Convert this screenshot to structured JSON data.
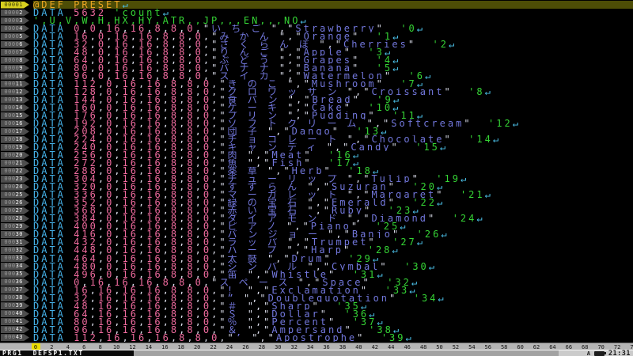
{
  "editor": {
    "label_line": "@DEF_PRESET",
    "count_line": {
      "keyword": "DATA",
      "value": "5632",
      "comment": "'count"
    },
    "header_comment": "',U,V,W,H,HX,HY,ATR,,JP,,,EN,,,NO",
    "return_glyph": "↵",
    "data_keyword": "DATA",
    "rows": [
      {
        "vals": [
          0,
          0,
          16,
          16,
          8,
          8,
          0
        ],
        "jp": "いちご",
        "en": "Strawberry",
        "no": 0
      },
      {
        "vals": [
          16,
          0,
          16,
          16,
          8,
          8,
          0
        ],
        "jp": "みかん",
        "en": "Orange",
        "no": 1
      },
      {
        "vals": [
          32,
          0,
          16,
          16,
          8,
          8,
          0
        ],
        "jp": "さくらんぼ",
        "en": "Cherries",
        "no": 2
      },
      {
        "vals": [
          48,
          0,
          16,
          16,
          8,
          8,
          0
        ],
        "jp": "りんご",
        "en": "Apple",
        "no": 3
      },
      {
        "vals": [
          64,
          0,
          16,
          16,
          8,
          8,
          0
        ],
        "jp": "ぶどう",
        "en": "Grapes",
        "no": 4
      },
      {
        "vals": [
          80,
          0,
          16,
          16,
          8,
          8,
          0
        ],
        "jp": "バナナ",
        "en": "Banana",
        "no": 5
      },
      {
        "vals": [
          96,
          0,
          16,
          16,
          8,
          8,
          0
        ],
        "jp": "スイカ",
        "en": "Watermelon",
        "no": 6
      },
      {
        "vals": [
          112,
          0,
          16,
          16,
          8,
          8,
          0
        ],
        "jp": "きのこ",
        "en": "Mushroom",
        "no": 7
      },
      {
        "vals": [
          128,
          0,
          16,
          16,
          8,
          8,
          0
        ],
        "jp": "クロワッサン",
        "en": "Croissant",
        "no": 8
      },
      {
        "vals": [
          144,
          0,
          16,
          16,
          8,
          8,
          0
        ],
        "jp": "食パン",
        "en": "Bread",
        "no": 9
      },
      {
        "vals": [
          160,
          0,
          16,
          16,
          8,
          8,
          0
        ],
        "jp": "ケーキ",
        "en": "Cake",
        "no": 10
      },
      {
        "vals": [
          176,
          0,
          16,
          16,
          8,
          8,
          0
        ],
        "jp": "プリン",
        "en": "Pudding",
        "no": 11
      },
      {
        "vals": [
          192,
          0,
          16,
          16,
          8,
          8,
          0
        ],
        "jp": "ソフトクリーム",
        "en": "Softcream",
        "no": 12
      },
      {
        "vals": [
          208,
          0,
          16,
          16,
          8,
          8,
          0
        ],
        "jp": "団子",
        "en": "Dango",
        "no": 13
      },
      {
        "vals": [
          224,
          0,
          16,
          16,
          8,
          8,
          0
        ],
        "jp": "チョコレート",
        "en": "Chocolate",
        "no": 14
      },
      {
        "vals": [
          240,
          0,
          16,
          16,
          8,
          8,
          0
        ],
        "jp": "キャンディ",
        "en": "Candy",
        "no": 15
      },
      {
        "vals": [
          256,
          0,
          16,
          16,
          8,
          8,
          0
        ],
        "jp": "肉",
        "en": "Meat",
        "no": 16
      },
      {
        "vals": [
          272,
          0,
          16,
          16,
          8,
          8,
          0
        ],
        "jp": "魚",
        "en": "Fish",
        "no": 17
      },
      {
        "vals": [
          288,
          0,
          16,
          16,
          8,
          8,
          0
        ],
        "jp": "薬草",
        "en": "Herb",
        "no": 18
      },
      {
        "vals": [
          304,
          0,
          16,
          16,
          8,
          8,
          0
        ],
        "jp": "チューリップ",
        "en": "Tulip",
        "no": 19
      },
      {
        "vals": [
          320,
          0,
          16,
          16,
          8,
          8,
          0
        ],
        "jp": "すずらん",
        "en": "Suzuran",
        "no": 20
      },
      {
        "vals": [
          336,
          0,
          16,
          16,
          8,
          8,
          0
        ],
        "jp": "マーガレット",
        "en": "Margaret",
        "no": 21
      },
      {
        "vals": [
          352,
          0,
          16,
          16,
          8,
          8,
          0
        ],
        "jp": "緑の宝石",
        "en": "Emerald",
        "no": 22
      },
      {
        "vals": [
          368,
          0,
          16,
          16,
          8,
          8,
          0
        ],
        "jp": "赤い宝石",
        "en": "Ruby",
        "no": 23
      },
      {
        "vals": [
          384,
          0,
          16,
          16,
          8,
          8,
          0
        ],
        "jp": "ダイアモンド",
        "en": "Diamond",
        "no": 24
      },
      {
        "vals": [
          400,
          0,
          16,
          16,
          8,
          8,
          0
        ],
        "jp": "ピアノ",
        "en": "Piano",
        "no": 25
      },
      {
        "vals": [
          416,
          0,
          16,
          16,
          8,
          8,
          0
        ],
        "jp": "バンジョー",
        "en": "Banjo",
        "no": 26
      },
      {
        "vals": [
          432,
          0,
          16,
          16,
          8,
          8,
          0
        ],
        "jp": "ラッパ",
        "en": "Trumpet",
        "no": 27
      },
      {
        "vals": [
          448,
          0,
          16,
          16,
          8,
          8,
          0
        ],
        "jp": "ハープ",
        "en": "Harp",
        "no": 28
      },
      {
        "vals": [
          464,
          0,
          16,
          16,
          8,
          8,
          0
        ],
        "jp": "太鼓",
        "en": "Drum",
        "no": 29
      },
      {
        "vals": [
          480,
          0,
          16,
          16,
          8,
          8,
          0
        ],
        "jp": "シンバル",
        "en": "Cymbal",
        "no": 30
      },
      {
        "vals": [
          496,
          0,
          16,
          16,
          8,
          8,
          0
        ],
        "jp": "笛",
        "en": "Whistle",
        "no": 31
      },
      {
        "vals": [
          0,
          16,
          16,
          16,
          8,
          8,
          0
        ],
        "jp": "スペース",
        "en": "Space",
        "no": 32
      },
      {
        "vals": [
          16,
          16,
          16,
          16,
          8,
          8,
          0
        ],
        "jp": "！",
        "en": "Exclamation",
        "no": 33
      },
      {
        "vals": [
          32,
          16,
          16,
          16,
          8,
          8,
          0
        ],
        "jp": "”",
        "en": "Doublequotation",
        "no": 34
      },
      {
        "vals": [
          48,
          16,
          16,
          16,
          8,
          8,
          0
        ],
        "jp": "＃",
        "en": "Sharp",
        "no": 35
      },
      {
        "vals": [
          64,
          16,
          16,
          16,
          8,
          8,
          0
        ],
        "jp": "＄",
        "en": "Dollar",
        "no": 36
      },
      {
        "vals": [
          80,
          16,
          16,
          16,
          8,
          8,
          0
        ],
        "jp": "％",
        "en": "Percent",
        "no": 37
      },
      {
        "vals": [
          96,
          16,
          16,
          16,
          8,
          8,
          0
        ],
        "jp": "＆",
        "en": "Ampersand",
        "no": 38
      },
      {
        "vals": [
          112,
          16,
          16,
          16,
          8,
          8,
          0
        ],
        "jp": "’",
        "en": "Apostrophe",
        "no": 39
      }
    ],
    "total_lines": 43,
    "current_line": 1
  },
  "ruler": {
    "min": 0,
    "max": 74,
    "step": 2,
    "highlight_col": 0
  },
  "status_bar": {
    "slot": "PRG1",
    "filename": "DEFSP1.TXT",
    "mode": "A",
    "time": "21:31"
  },
  "colors": {
    "background": "#000000",
    "keyword": "#45b1e8",
    "number": "#ee6a9d",
    "punct": "#d9dbe8",
    "string": "#7277dc",
    "comment": "#35d435",
    "label": "#eda523",
    "ret": "#4cc3ec",
    "current_line": "#4d4d06",
    "flag_bg": "#4d4d4d",
    "flag_dim": "#999999",
    "flag_lit": "#f2f2f2",
    "flag_active_bg": "#d7cf1f",
    "flag_active_text": "#3f3f05",
    "ruler_bg": "#b5b5b5",
    "ruler_text": "#121212",
    "ruler_highlight": "#ecdf00",
    "status_left_bg": "#0a0a0a",
    "status_left_text": "#f0f0f0",
    "tray_bg": "#a2a2a2",
    "tray_box_bg": "#cbcbcb",
    "tray_text": "#1c1c1c"
  }
}
